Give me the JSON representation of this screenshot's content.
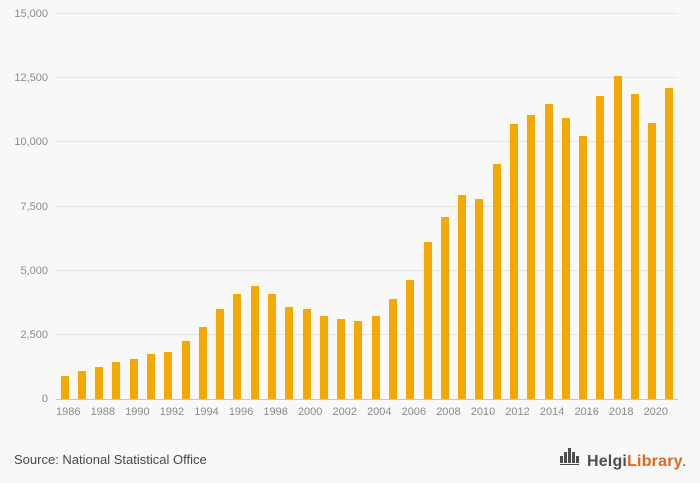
{
  "chart_data": {
    "type": "bar",
    "categories": [
      1986,
      1987,
      1988,
      1989,
      1990,
      1991,
      1992,
      1993,
      1994,
      1995,
      1996,
      1997,
      1998,
      1999,
      2000,
      2001,
      2002,
      2003,
      2004,
      2005,
      2006,
      2007,
      2008,
      2009,
      2010,
      2011,
      2012,
      2013,
      2014,
      2015,
      2016,
      2017,
      2018,
      2019,
      2020,
      2021
    ],
    "values": [
      900,
      1100,
      1250,
      1450,
      1550,
      1750,
      1850,
      2250,
      2800,
      3500,
      4100,
      4400,
      4100,
      3600,
      3500,
      3250,
      3100,
      3050,
      3250,
      3900,
      4650,
      6100,
      7100,
      7950,
      7800,
      9150,
      10700,
      11050,
      11500,
      10950,
      10250,
      11800,
      12600,
      11900,
      10750,
      12100
    ],
    "xlabel": "",
    "ylabel": "",
    "ylim": [
      0,
      15000
    ],
    "yticks": [
      0,
      2500,
      5000,
      7500,
      10000,
      12500,
      15000
    ],
    "ytick_labels": [
      "0",
      "2,500",
      "5,000",
      "7,500",
      "10,000",
      "12,500",
      "15,000"
    ],
    "xtick_labels": [
      "1986",
      "1988",
      "1990",
      "1992",
      "1994",
      "1996",
      "1998",
      "2000",
      "2002",
      "2004",
      "2006",
      "2008",
      "2010",
      "2012",
      "2014",
      "2016",
      "2018",
      "2020"
    ],
    "bar_color": "#F5A800",
    "grid": "horizontal",
    "legend": "none"
  },
  "footer": {
    "source": "Source: National Statistical Office",
    "logo": {
      "helgi": "Helgi",
      "library": "Library",
      "suffix": "."
    }
  },
  "colors": {
    "background": "#f8f8f8",
    "gridline": "#e4e4e4",
    "axis_line": "#c6c6c6",
    "tick_text": "#8b8b8b",
    "bar": "#F5A800",
    "logo_dark": "#4d4d4d",
    "logo_accent": "#e0661a"
  }
}
